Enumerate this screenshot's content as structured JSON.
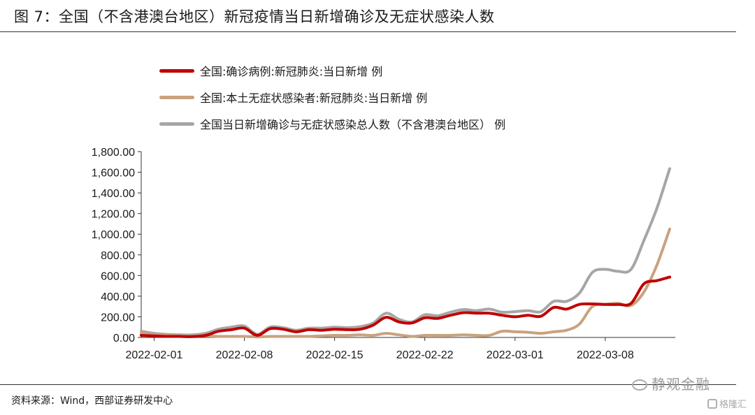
{
  "figure": {
    "title": "图 7：全国（不含港澳台地区）新冠疫情当日新增确诊及无症状感染人数",
    "source": "资料来源：Wind，西部证券研发中心"
  },
  "watermark": {
    "channel": "静观金融",
    "brand": "格隆汇",
    "channel_icon": "wechat-icon",
    "brand_icon": "gelonghui-logo-icon"
  },
  "chart_data": {
    "type": "line",
    "x_tick_labels": [
      "2022-02-01",
      "2022-02-08",
      "2022-02-15",
      "2022-02-22",
      "2022-03-01",
      "2022-03-08"
    ],
    "y_tick_labels": [
      "0.00",
      "200.00",
      "400.00",
      "600.00",
      "800.00",
      "1,000.00",
      "1,200.00",
      "1,400.00",
      "1,600.00",
      "1,800.00"
    ],
    "ylim": [
      0,
      1800
    ],
    "grid": false,
    "legend_position": "top-left",
    "x": [
      "2022-01-31",
      "2022-02-01",
      "2022-02-02",
      "2022-02-03",
      "2022-02-04",
      "2022-02-05",
      "2022-02-06",
      "2022-02-07",
      "2022-02-08",
      "2022-02-09",
      "2022-02-10",
      "2022-02-11",
      "2022-02-12",
      "2022-02-13",
      "2022-02-14",
      "2022-02-15",
      "2022-02-16",
      "2022-02-17",
      "2022-02-18",
      "2022-02-19",
      "2022-02-20",
      "2022-02-21",
      "2022-02-22",
      "2022-02-23",
      "2022-02-24",
      "2022-02-25",
      "2022-02-26",
      "2022-02-27",
      "2022-02-28",
      "2022-03-01",
      "2022-03-02",
      "2022-03-03",
      "2022-03-04",
      "2022-03-05",
      "2022-03-06",
      "2022-03-07",
      "2022-03-08",
      "2022-03-09",
      "2022-03-10",
      "2022-03-11",
      "2022-03-12",
      "2022-03-13"
    ],
    "series": [
      {
        "name": "全国:确诊病例:新冠肺炎:当日新增 例",
        "color": "#c00000",
        "values": [
          20,
          15,
          10,
          10,
          8,
          20,
          60,
          75,
          90,
          20,
          85,
          80,
          55,
          75,
          70,
          80,
          75,
          80,
          120,
          195,
          150,
          140,
          190,
          185,
          215,
          240,
          235,
          235,
          215,
          200,
          215,
          205,
          290,
          275,
          320,
          325,
          320,
          320,
          330,
          520,
          550,
          585
        ]
      },
      {
        "name": "全国:本土无症状感染者:新冠肺炎:当日新增 例",
        "color": "#c9a27e",
        "values": [
          40,
          25,
          20,
          15,
          15,
          15,
          10,
          10,
          10,
          5,
          10,
          10,
          10,
          10,
          15,
          20,
          20,
          25,
          20,
          40,
          25,
          10,
          20,
          20,
          20,
          25,
          20,
          20,
          60,
          55,
          50,
          40,
          55,
          70,
          130,
          300,
          320,
          330,
          310,
          440,
          700,
          1050
        ]
      },
      {
        "name": "全国当日新增确诊与无症状感染总人数（不含港澳台地区） 例",
        "color": "#a6a6a6",
        "values": [
          60,
          40,
          30,
          25,
          25,
          40,
          80,
          100,
          110,
          30,
          100,
          95,
          70,
          90,
          90,
          100,
          95,
          105,
          140,
          235,
          175,
          150,
          220,
          210,
          245,
          270,
          260,
          275,
          245,
          250,
          260,
          250,
          350,
          350,
          430,
          630,
          660,
          640,
          660,
          940,
          1250,
          1635
        ]
      }
    ]
  }
}
